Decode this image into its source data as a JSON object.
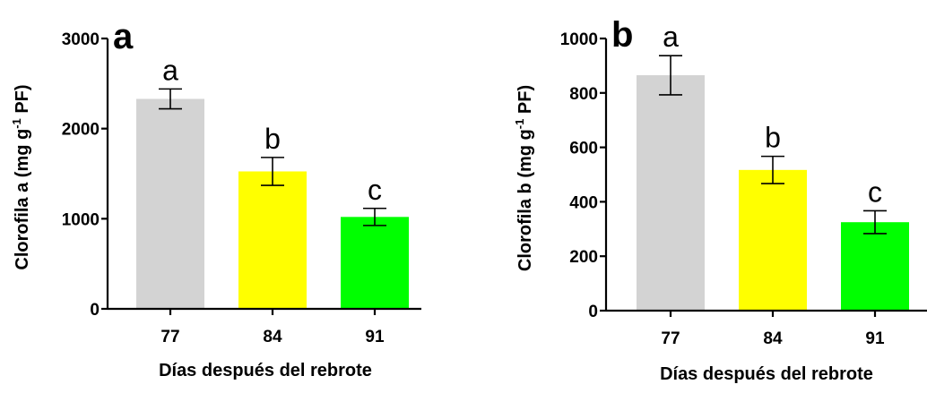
{
  "chart_data": [
    {
      "type": "bar",
      "panel_label": "a",
      "categories": [
        "77",
        "84",
        "91"
      ],
      "values": [
        2330,
        1525,
        1020
      ],
      "errors": [
        110,
        155,
        95
      ],
      "significance": [
        "a",
        "b",
        "c"
      ],
      "bar_colors": [
        "#d3d3d3",
        "#ffff00",
        "#00ff00"
      ],
      "title": "",
      "xlabel": "Días después del rebrote",
      "ylabel": "Clorofila a (mg g",
      "ylabel_sup": "-1",
      "ylabel_tail": " PF)",
      "ylim": [
        0,
        3000
      ],
      "yticks": [
        "0",
        "1000",
        "2000",
        "3000"
      ],
      "grid": false,
      "legend": false
    },
    {
      "type": "bar",
      "panel_label": "b",
      "categories": [
        "77",
        "84",
        "91"
      ],
      "values": [
        865,
        517,
        325
      ],
      "errors": [
        72,
        50,
        42
      ],
      "significance": [
        "a",
        "b",
        "c"
      ],
      "bar_colors": [
        "#d3d3d3",
        "#ffff00",
        "#00ff00"
      ],
      "title": "",
      "xlabel": "Días después del rebrote",
      "ylabel": "Clorofila b (mg g",
      "ylabel_sup": "-1",
      "ylabel_tail": " PF)",
      "ylim": [
        0,
        1000
      ],
      "yticks": [
        "0",
        "200",
        "400",
        "600",
        "800",
        "1000"
      ],
      "grid": false,
      "legend": false
    }
  ]
}
